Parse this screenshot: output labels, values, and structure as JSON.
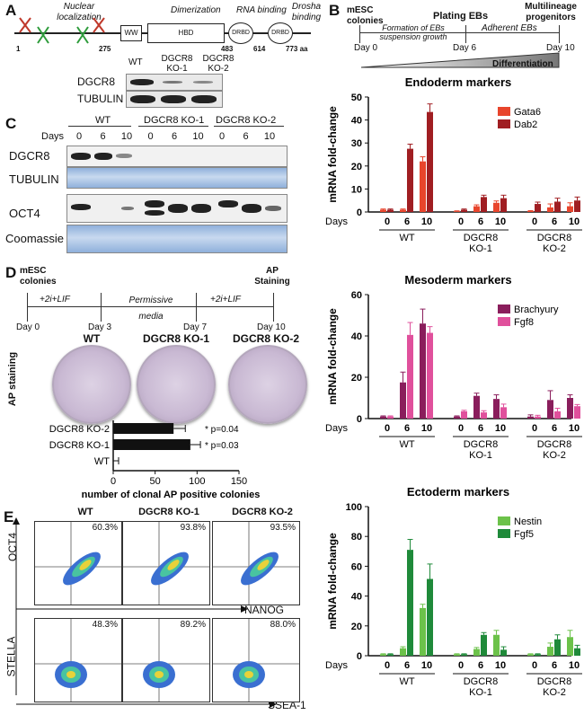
{
  "panelA": {
    "label": "A",
    "top_labels": [
      "Nuclear localization",
      "Dimerization",
      "RNA binding",
      "Drosha binding"
    ],
    "domains": [
      "WW",
      "HBD",
      "DRBD",
      "DRBD"
    ],
    "positions": [
      "1",
      "275",
      "483",
      "614",
      "773 aa"
    ],
    "lanes": [
      "WT",
      "DGCR8 KO-1",
      "DGCR8 KO-2"
    ],
    "rows": [
      "DGCR8",
      "TUBULIN"
    ]
  },
  "panelB": {
    "label": "B",
    "timeline": {
      "start_label": "mESC colonies",
      "mid_label": "Plating EBs",
      "end_label": "Multilineage progenitors",
      "phase1": "Formation of EBs suspension growth",
      "phase2": "Adherent EBs",
      "days": [
        "Day 0",
        "Day 6",
        "Day 10"
      ],
      "gradient": "Differentiation"
    }
  },
  "panelC": {
    "label": "C",
    "groups": [
      "WT",
      "DGCR8 KO-1",
      "DGCR8 KO-2"
    ],
    "days_label": "Days",
    "days": [
      "0",
      "6",
      "10",
      "0",
      "6",
      "10",
      "0",
      "6",
      "10"
    ],
    "rows": [
      "DGCR8",
      "TUBULIN",
      "OCT4",
      "Coomassie"
    ]
  },
  "panelD": {
    "label": "D",
    "timeline": {
      "start": "mESC colonies",
      "end": "AP Staining",
      "phases": [
        "+2i+LIF",
        "Permissive media",
        "+2i+LIF"
      ],
      "days": [
        "Day 0",
        "Day 3",
        "Day 7",
        "Day 10"
      ]
    },
    "plates": [
      "WT",
      "DGCR8 KO-1",
      "DGCR8 KO-2"
    ],
    "side_label": "AP staining"
  },
  "panelE": {
    "label": "E",
    "columns": [
      "WT",
      "DGCR8 KO-1",
      "DGCR8 KO-2"
    ],
    "row1": {
      "y": "OCT4",
      "x": "NANOG",
      "pcts": [
        "60.3%",
        "93.8%",
        "93.5%"
      ]
    },
    "row2": {
      "y": "STELLA",
      "x": "SSEA-1",
      "pcts": [
        "48.3%",
        "89.2%",
        "88.0%"
      ]
    }
  },
  "colors": {
    "gata6": "#e8452c",
    "dab2": "#a01e22",
    "brachyury": "#8a1e5c",
    "fgf8": "#e0509c",
    "nestin": "#6cc24a",
    "fgf5": "#1f8a3a"
  },
  "chart_data": [
    {
      "type": "bar",
      "title": "Endoderm markers",
      "ylabel": "mRNA fold-change",
      "xlabel": "Days",
      "ylim": [
        0,
        50
      ],
      "yticks": [
        0,
        10,
        20,
        30,
        40,
        50
      ],
      "categories": [
        "0",
        "6",
        "10",
        "0",
        "6",
        "10",
        "0",
        "6",
        "10"
      ],
      "groups": [
        "WT",
        "DGCR8 KO-1",
        "DGCR8 KO-2"
      ],
      "series": [
        {
          "name": "Gata6",
          "values": [
            1.0,
            1.0,
            22.0,
            0.3,
            2.5,
            4.0,
            0.4,
            2.0,
            2.5
          ],
          "errors": [
            0.3,
            0.3,
            2.0,
            0.2,
            0.6,
            0.8,
            0.2,
            1.5,
            1.5
          ]
        },
        {
          "name": "Dab2",
          "values": [
            1.0,
            27.5,
            43.5,
            1.0,
            6.5,
            6.0,
            3.5,
            4.5,
            5.0
          ],
          "errors": [
            0.3,
            2.0,
            3.5,
            0.3,
            0.8,
            1.3,
            0.8,
            1.5,
            1.5
          ]
        }
      ]
    },
    {
      "type": "bar",
      "title": "Mesoderm markers",
      "ylabel": "mRNA fold-change",
      "xlabel": "Days",
      "ylim": [
        0,
        60
      ],
      "yticks": [
        0,
        20,
        40,
        60
      ],
      "categories": [
        "0",
        "6",
        "10",
        "0",
        "6",
        "10",
        "0",
        "6",
        "10"
      ],
      "groups": [
        "WT",
        "DGCR8 KO-1",
        "DGCR8 KO-2"
      ],
      "series": [
        {
          "name": "Brachyury",
          "values": [
            1.0,
            17.5,
            46.0,
            1.0,
            11.0,
            9.5,
            1.0,
            9.0,
            10.0
          ],
          "errors": [
            0.3,
            5.0,
            7.0,
            0.3,
            1.3,
            2.0,
            0.8,
            4.5,
            1.5
          ]
        },
        {
          "name": "Fgf8",
          "values": [
            1.0,
            40.5,
            41.5,
            3.5,
            3.0,
            5.5,
            1.0,
            3.5,
            6.0
          ],
          "errors": [
            0.3,
            6.0,
            3.0,
            0.5,
            0.8,
            1.5,
            0.6,
            1.5,
            0.8
          ]
        }
      ]
    },
    {
      "type": "bar",
      "title": "Ectoderm markers",
      "ylabel": "mRNA fold-change",
      "xlabel": "Days",
      "ylim": [
        0,
        100
      ],
      "yticks": [
        0,
        20,
        40,
        60,
        80,
        100
      ],
      "categories": [
        "0",
        "6",
        "10",
        "0",
        "6",
        "10",
        "0",
        "6",
        "10"
      ],
      "groups": [
        "WT",
        "DGCR8 KO-1",
        "DGCR8 KO-2"
      ],
      "series": [
        {
          "name": "Nestin",
          "values": [
            1.0,
            5.0,
            32.0,
            1.0,
            4.5,
            14.0,
            1.0,
            6.0,
            12.5
          ],
          "errors": [
            0.3,
            1.0,
            2.5,
            0.3,
            1.0,
            3.0,
            0.3,
            2.5,
            4.5
          ]
        },
        {
          "name": "Fgf5",
          "values": [
            1.0,
            71.0,
            51.5,
            1.0,
            14.0,
            4.0,
            1.0,
            11.0,
            5.0
          ],
          "errors": [
            0.3,
            7.0,
            10.0,
            0.3,
            1.5,
            2.0,
            0.3,
            3.0,
            2.0
          ]
        }
      ]
    },
    {
      "type": "bar",
      "orientation": "horizontal",
      "xlabel": "number of clonal AP positive colonies",
      "xlim": [
        0,
        150
      ],
      "xticks": [
        0,
        50,
        100,
        150
      ],
      "categories": [
        "DGCR8 KO-2",
        "DGCR8 KO-1",
        "WT"
      ],
      "values": [
        72,
        92,
        0
      ],
      "errors": [
        14,
        12,
        0
      ],
      "annotations": [
        "* p=0.04",
        "* p=0.03",
        ""
      ]
    }
  ]
}
